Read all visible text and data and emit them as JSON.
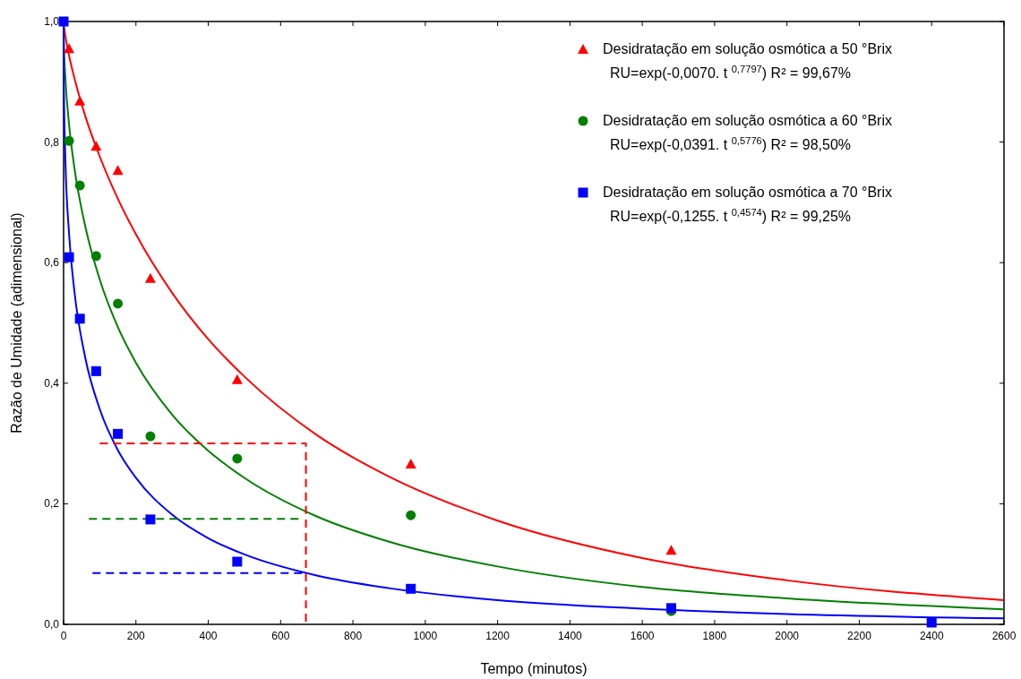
{
  "chart_data": {
    "type": "scatter",
    "xlabel": "Tempo (minutos)",
    "ylabel": "Razão de Umidade (adimensional)",
    "xlim": [
      0,
      2600
    ],
    "ylim": [
      0,
      1
    ],
    "xticks": [
      0,
      200,
      400,
      600,
      800,
      1000,
      1200,
      1400,
      1600,
      1800,
      2000,
      2200,
      2400,
      2600
    ],
    "yticks": [
      {
        "value": 0,
        "label": "0,0"
      },
      {
        "value": 0.2,
        "label": "0,2"
      },
      {
        "value": 0.4,
        "label": "0,4"
      },
      {
        "value": 0.6,
        "label": "0,6"
      },
      {
        "value": 0.8,
        "label": "0,8"
      },
      {
        "value": 1,
        "label": "1,0"
      }
    ],
    "grid": false,
    "legend": "top right",
    "annotations": [
      "RU=exp(-0,0070. t $^{0,7797}$)  R² = 99,67%",
      "RU=exp(-0,0391. t $^{0,5776}$)   R² = 98,50%",
      "RU=exp(-0,1255. t $^{0,4574}$)  R² = 99,25%"
    ],
    "series": [
      {
        "type": "line",
        "color": "#ff0000",
        "marker": "none",
        "line_style": "solid",
        "x": [
          0,
          1,
          5,
          15,
          30,
          60,
          100,
          150,
          200,
          300,
          400,
          500,
          700,
          900,
          1200,
          1600,
          2000,
          2600
        ],
        "values": [
          1,
          0.993,
          0.976,
          0.944,
          0.906,
          0.843,
          0.776,
          0.706,
          0.647,
          0.55,
          0.473,
          0.411,
          0.314,
          0.245,
          0.172,
          0.11,
          0.073,
          0.04
        ]
      },
      {
        "type": "line",
        "color": "#008000",
        "marker": "none",
        "line_style": "solid",
        "x": [
          0,
          1,
          5,
          15,
          30,
          60,
          100,
          150,
          200,
          300,
          400,
          500,
          700,
          900,
          1200,
          1600,
          2000,
          2600
        ],
        "values": [
          1,
          0.962,
          0.906,
          0.83,
          0.757,
          0.66,
          0.572,
          0.493,
          0.434,
          0.348,
          0.288,
          0.243,
          0.179,
          0.137,
          0.096,
          0.062,
          0.043,
          0.025
        ]
      },
      {
        "type": "line",
        "color": "#0000ff",
        "marker": "none",
        "line_style": "solid",
        "x": [
          0,
          1,
          5,
          15,
          30,
          60,
          100,
          150,
          200,
          300,
          400,
          500,
          700,
          900,
          1200,
          1600,
          2000,
          2600
        ],
        "values": [
          1,
          0.882,
          0.77,
          0.649,
          0.552,
          0.442,
          0.357,
          0.289,
          0.243,
          0.182,
          0.143,
          0.116,
          0.081,
          0.06,
          0.04,
          0.026,
          0.017,
          0.01
        ]
      },
      {
        "type": "line",
        "color": "#ff0000",
        "marker": "none",
        "line_style": "dashed",
        "x": [
          100,
          670,
          670
        ],
        "values": [
          0.3,
          0.3,
          0
        ]
      },
      {
        "type": "line",
        "color": "#008000",
        "marker": "none",
        "line_style": "dashed",
        "x": [
          70,
          650
        ],
        "values": [
          0.175,
          0.175
        ]
      },
      {
        "type": "line",
        "color": "#0000ff",
        "marker": "none",
        "line_style": "dashed",
        "x": [
          80,
          660
        ],
        "values": [
          0.085,
          0.085
        ]
      },
      {
        "name": "Desidratação em solução osmótica a 50 °Brix",
        "color": "#ff0000",
        "marker": "triangle",
        "x": [
          15,
          45,
          90,
          150,
          240,
          480,
          960,
          1680
        ],
        "values": [
          0.955,
          0.868,
          0.793,
          0.753,
          0.574,
          0.406,
          0.266,
          0.123
        ]
      },
      {
        "name": "Desidratação em solução osmótica a 60 °Brix",
        "color": "#008000",
        "marker": "circle",
        "x": [
          15,
          45,
          90,
          150,
          240,
          480,
          960,
          1680
        ],
        "values": [
          0.802,
          0.728,
          0.611,
          0.532,
          0.312,
          0.275,
          0.181,
          0.022
        ]
      },
      {
        "name": "Desidratação em solução osmótica a 70 °Brix",
        "color": "#0000ff",
        "marker": "square",
        "x": [
          0,
          15,
          45,
          90,
          150,
          240,
          480,
          960,
          1680,
          2400
        ],
        "values": [
          1,
          0.609,
          0.507,
          0.42,
          0.316,
          0.174,
          0.104,
          0.059,
          0.027,
          0.003
        ]
      }
    ]
  }
}
